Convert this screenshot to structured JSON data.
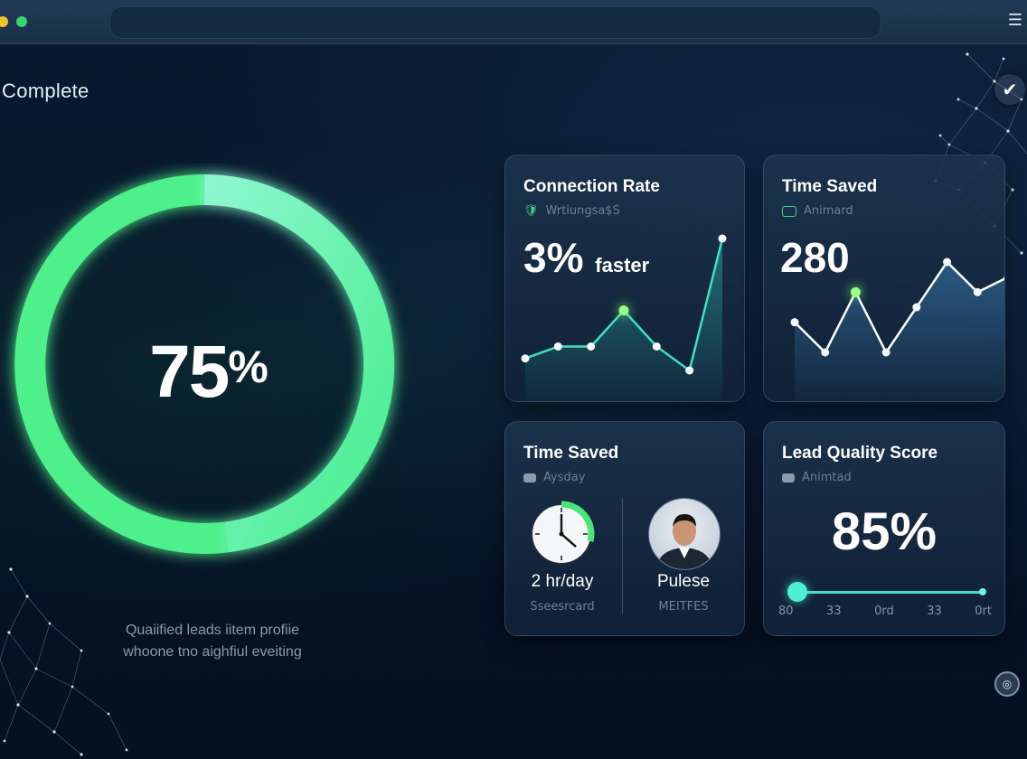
{
  "window": {
    "menu_icon": "hamburger-menu-icon"
  },
  "page": {
    "title": "Complete",
    "check_icon": "checkmark-icon",
    "footer_icon": "info-icon"
  },
  "gauge": {
    "value": "75",
    "unit": "%",
    "progress": 0.75,
    "caption_line1": "Quaiified leads iitem profiie",
    "caption_line2": "whoone tno aighfiul eveiting",
    "colors": {
      "arc": "#4df08a",
      "arc_light": "#7bf7c4"
    }
  },
  "cards": {
    "connection": {
      "title": "Connection Rate",
      "subtitle": "Wrtiungsa$S",
      "value": "3%",
      "value_suffix": "faster",
      "chart_values": [
        2,
        3,
        3,
        6,
        3,
        1,
        12
      ]
    },
    "time_saved_top": {
      "title": "Time Saved",
      "subtitle": "Animard",
      "value": "280",
      "chart_values": [
        5,
        3,
        7,
        3,
        6,
        9,
        7,
        8
      ]
    },
    "time_saved_bottom": {
      "title": "Time Saved",
      "subtitle": "Aysday",
      "clock_label": "2 hr/day",
      "clock_sub": "Sseesrcard",
      "person_label": "Pulese",
      "person_sub": "MEITFES"
    },
    "lead_quality": {
      "title": "Lead Quality Score",
      "subtitle": "Animtad",
      "value": "85%",
      "ticks": [
        "80",
        "33",
        "0rd",
        "33",
        "0rt"
      ]
    }
  }
}
